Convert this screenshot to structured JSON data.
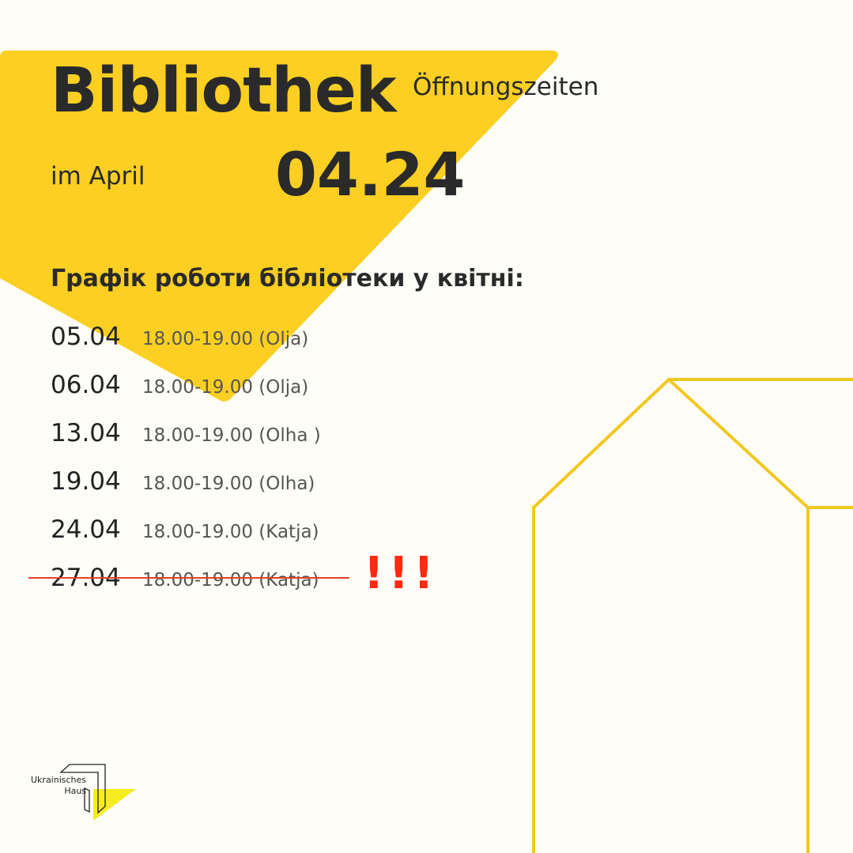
{
  "colors": {
    "accent": "#fccf22",
    "strike": "#e0442a",
    "alert": "#ff2a10"
  },
  "header": {
    "title": "Bibliothek",
    "subtitle": "Öffnungszeiten",
    "month": "im April",
    "date_code": "04.24"
  },
  "schedule": {
    "heading": "Графік роботи бібліотеки у квітні:",
    "rows": [
      {
        "date": "05.04",
        "time": "18.00-19.00 (Olja)"
      },
      {
        "date": "06.04",
        "time": "18.00-19.00 (Olja)"
      },
      {
        "date": "13.04",
        "time": "18.00-19.00 (Olha )"
      },
      {
        "date": "19.04",
        "time": "18.00-19.00 (Olha)"
      },
      {
        "date": "24.04",
        "time": "18.00-19.00 (Katja)"
      },
      {
        "date": "27.04",
        "time": "18.00-19.00 (Katja)",
        "cancelled": true
      }
    ],
    "alert": "!!!"
  },
  "logo": {
    "line1": "Ukrainisches",
    "line2": "Haus"
  }
}
